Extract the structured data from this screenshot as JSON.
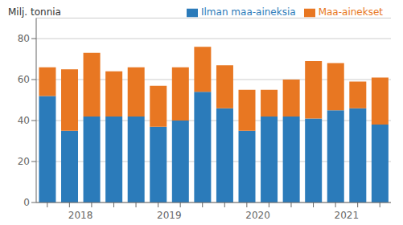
{
  "chart_data": {
    "type": "bar",
    "stacked": true,
    "ylabel": "Milj. tonnia",
    "categories": [
      null,
      "2018",
      null,
      null,
      null,
      "2019",
      null,
      null,
      null,
      "2020",
      null,
      null,
      null,
      "2021",
      null,
      null
    ],
    "series": [
      {
        "name": "Ilman maa-aineksia",
        "color": "#2b7bba",
        "values": [
          52,
          35,
          42,
          42,
          42,
          37,
          40,
          54,
          46,
          35,
          42,
          42,
          41,
          45,
          46,
          38
        ]
      },
      {
        "name": "Maa-ainekset",
        "color": "#e87722",
        "values": [
          14,
          30,
          31,
          22,
          24,
          20,
          26,
          22,
          21,
          20,
          13,
          18,
          28,
          23,
          13,
          23
        ]
      }
    ],
    "ylim": [
      0,
      90
    ],
    "yticks": [
      0,
      20,
      40,
      60,
      80
    ],
    "grid": true,
    "legend": "upper right"
  }
}
